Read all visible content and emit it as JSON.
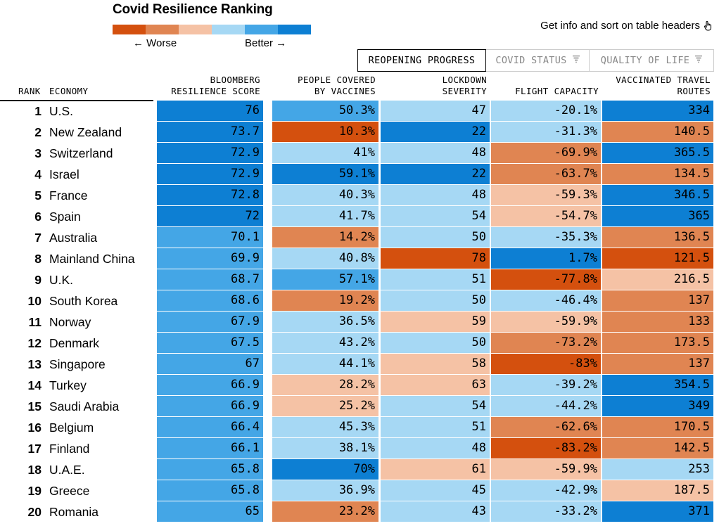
{
  "title": "Covid Resilience Ranking",
  "legend": {
    "worse_label": "← Worse",
    "better_label": "Better →",
    "colors": [
      "#d4500e",
      "#e08552",
      "#f5c2a5",
      "#a6d8f4",
      "#44a6e6",
      "#0d7fd3"
    ]
  },
  "info_text": "Get info and sort on table headers",
  "tabs": [
    {
      "label": "REOPENING PROGRESS",
      "active": true
    },
    {
      "label": "COVID STATUS",
      "active": false
    },
    {
      "label": "QUALITY OF LIFE",
      "active": false
    }
  ],
  "headers": {
    "rank": "RANK",
    "economy": "ECONOMY",
    "score_1": "BLOOMBERG",
    "score_2": "RESILIENCE SCORE",
    "vacc_1": "PEOPLE COVERED",
    "vacc_2": "BY VACCINES",
    "lock_1": "LOCKDOWN",
    "lock_2": "SEVERITY",
    "flight": "FLIGHT CAPACITY",
    "travel_1": "VACCINATED TRAVEL",
    "travel_2": "ROUTES"
  },
  "chart_data": {
    "type": "table",
    "title": "Covid Resilience Ranking",
    "columns": [
      "Rank",
      "Economy",
      "Bloomberg Resilience Score",
      "People Covered by Vaccines",
      "Lockdown Severity",
      "Flight Capacity",
      "Vaccinated Travel Routes"
    ],
    "rows": [
      {
        "rank": "1",
        "economy": "U.S.",
        "score": "76",
        "vaccines": "50.3%",
        "lockdown": "47",
        "flight": "-20.1%",
        "routes": "334",
        "colors": [
          "#0d7fd3",
          "#44a6e6",
          "#a6d8f4",
          "#a6d8f4",
          "#0d7fd3"
        ]
      },
      {
        "rank": "2",
        "economy": "New Zealand",
        "score": "73.7",
        "vaccines": "10.3%",
        "lockdown": "22",
        "flight": "-31.3%",
        "routes": "140.5",
        "colors": [
          "#0d7fd3",
          "#d4500e",
          "#0d7fd3",
          "#a6d8f4",
          "#e08552"
        ]
      },
      {
        "rank": "3",
        "economy": "Switzerland",
        "score": "72.9",
        "vaccines": "41%",
        "lockdown": "48",
        "flight": "-69.9%",
        "routes": "365.5",
        "colors": [
          "#0d7fd3",
          "#a6d8f4",
          "#a6d8f4",
          "#e08552",
          "#0d7fd3"
        ]
      },
      {
        "rank": "4",
        "economy": "Israel",
        "score": "72.9",
        "vaccines": "59.1%",
        "lockdown": "22",
        "flight": "-63.7%",
        "routes": "134.5",
        "colors": [
          "#0d7fd3",
          "#0d7fd3",
          "#0d7fd3",
          "#e08552",
          "#e08552"
        ]
      },
      {
        "rank": "5",
        "economy": "France",
        "score": "72.8",
        "vaccines": "40.3%",
        "lockdown": "48",
        "flight": "-59.3%",
        "routes": "346.5",
        "colors": [
          "#0d7fd3",
          "#a6d8f4",
          "#a6d8f4",
          "#f5c2a5",
          "#0d7fd3"
        ]
      },
      {
        "rank": "6",
        "economy": "Spain",
        "score": "72",
        "vaccines": "41.7%",
        "lockdown": "54",
        "flight": "-54.7%",
        "routes": "365",
        "colors": [
          "#0d7fd3",
          "#a6d8f4",
          "#a6d8f4",
          "#f5c2a5",
          "#0d7fd3"
        ]
      },
      {
        "rank": "7",
        "economy": "Australia",
        "score": "70.1",
        "vaccines": "14.2%",
        "lockdown": "50",
        "flight": "-35.3%",
        "routes": "136.5",
        "colors": [
          "#44a6e6",
          "#e08552",
          "#a6d8f4",
          "#a6d8f4",
          "#e08552"
        ]
      },
      {
        "rank": "8",
        "economy": "Mainland China",
        "score": "69.9",
        "vaccines": "40.8%",
        "lockdown": "78",
        "flight": "1.7%",
        "routes": "121.5",
        "colors": [
          "#44a6e6",
          "#a6d8f4",
          "#d4500e",
          "#0d7fd3",
          "#d4500e"
        ]
      },
      {
        "rank": "9",
        "economy": "U.K.",
        "score": "68.7",
        "vaccines": "57.1%",
        "lockdown": "51",
        "flight": "-77.8%",
        "routes": "216.5",
        "colors": [
          "#44a6e6",
          "#44a6e6",
          "#a6d8f4",
          "#d4500e",
          "#f5c2a5"
        ]
      },
      {
        "rank": "10",
        "economy": "South Korea",
        "score": "68.6",
        "vaccines": "19.2%",
        "lockdown": "50",
        "flight": "-46.4%",
        "routes": "137",
        "colors": [
          "#44a6e6",
          "#e08552",
          "#a6d8f4",
          "#a6d8f4",
          "#e08552"
        ]
      },
      {
        "rank": "11",
        "economy": "Norway",
        "score": "67.9",
        "vaccines": "36.5%",
        "lockdown": "59",
        "flight": "-59.9%",
        "routes": "133",
        "colors": [
          "#44a6e6",
          "#a6d8f4",
          "#f5c2a5",
          "#f5c2a5",
          "#e08552"
        ]
      },
      {
        "rank": "12",
        "economy": "Denmark",
        "score": "67.5",
        "vaccines": "43.2%",
        "lockdown": "50",
        "flight": "-73.2%",
        "routes": "173.5",
        "colors": [
          "#44a6e6",
          "#a6d8f4",
          "#a6d8f4",
          "#e08552",
          "#e08552"
        ]
      },
      {
        "rank": "13",
        "economy": "Singapore",
        "score": "67",
        "vaccines": "44.1%",
        "lockdown": "58",
        "flight": "-83%",
        "routes": "137",
        "colors": [
          "#44a6e6",
          "#a6d8f4",
          "#f5c2a5",
          "#d4500e",
          "#e08552"
        ]
      },
      {
        "rank": "14",
        "economy": "Turkey",
        "score": "66.9",
        "vaccines": "28.2%",
        "lockdown": "63",
        "flight": "-39.2%",
        "routes": "354.5",
        "colors": [
          "#44a6e6",
          "#f5c2a5",
          "#f5c2a5",
          "#a6d8f4",
          "#0d7fd3"
        ]
      },
      {
        "rank": "15",
        "economy": "Saudi Arabia",
        "score": "66.9",
        "vaccines": "25.2%",
        "lockdown": "54",
        "flight": "-44.2%",
        "routes": "349",
        "colors": [
          "#44a6e6",
          "#f5c2a5",
          "#a6d8f4",
          "#a6d8f4",
          "#0d7fd3"
        ]
      },
      {
        "rank": "16",
        "economy": "Belgium",
        "score": "66.4",
        "vaccines": "45.3%",
        "lockdown": "51",
        "flight": "-62.6%",
        "routes": "170.5",
        "colors": [
          "#44a6e6",
          "#a6d8f4",
          "#a6d8f4",
          "#e08552",
          "#e08552"
        ]
      },
      {
        "rank": "17",
        "economy": "Finland",
        "score": "66.1",
        "vaccines": "38.1%",
        "lockdown": "48",
        "flight": "-83.2%",
        "routes": "142.5",
        "colors": [
          "#44a6e6",
          "#a6d8f4",
          "#a6d8f4",
          "#d4500e",
          "#e08552"
        ]
      },
      {
        "rank": "18",
        "economy": "U.A.E.",
        "score": "65.8",
        "vaccines": "70%",
        "lockdown": "61",
        "flight": "-59.9%",
        "routes": "253",
        "colors": [
          "#44a6e6",
          "#0d7fd3",
          "#f5c2a5",
          "#f5c2a5",
          "#a6d8f4"
        ]
      },
      {
        "rank": "19",
        "economy": "Greece",
        "score": "65.8",
        "vaccines": "36.9%",
        "lockdown": "45",
        "flight": "-42.9%",
        "routes": "187.5",
        "colors": [
          "#44a6e6",
          "#a6d8f4",
          "#a6d8f4",
          "#a6d8f4",
          "#f5c2a5"
        ]
      },
      {
        "rank": "20",
        "economy": "Romania",
        "score": "65",
        "vaccines": "23.2%",
        "lockdown": "43",
        "flight": "-33.2%",
        "routes": "371",
        "colors": [
          "#44a6e6",
          "#e08552",
          "#a6d8f4",
          "#a6d8f4",
          "#0d7fd3"
        ]
      }
    ]
  }
}
